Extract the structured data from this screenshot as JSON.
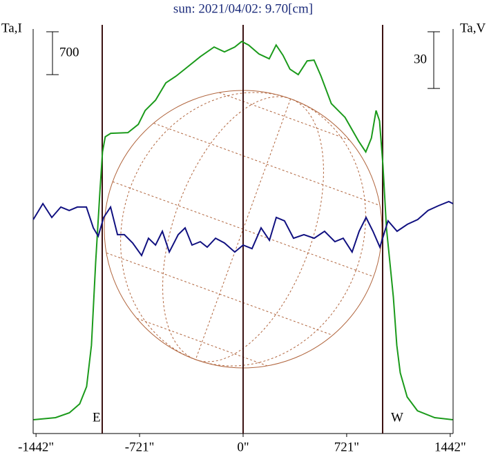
{
  "chart_data": {
    "type": "line",
    "title": "sun: 2021/04/02: 9.70[cm]",
    "ylabel": "Ta,I",
    "y2label": "Ta,V",
    "xlim": [
      -1462,
      1462
    ],
    "xticks": [
      {
        "value": -1442,
        "label": "-1442\""
      },
      {
        "value": -721,
        "label": "-721\""
      },
      {
        "value": 0,
        "label": "0\""
      },
      {
        "value": 721,
        "label": "721\""
      },
      {
        "value": 1442,
        "label": "1442\""
      }
    ],
    "ylim": [
      0,
      6600
    ],
    "y2lim": [
      -107,
      107
    ],
    "scale_bars": [
      {
        "value": 700,
        "axis": "y"
      },
      {
        "value": 30,
        "axis": "y2"
      }
    ],
    "limb_labels": [
      "E",
      "W"
    ],
    "series": [
      {
        "name": "Ta,I",
        "color": "#1a9a1a",
        "axis": "y",
        "x": [
          -1459,
          -1306,
          -1210,
          -1138,
          -1090,
          -1056,
          -1027,
          -998,
          -979,
          -960,
          -922,
          -802,
          -730,
          -682,
          -610,
          -538,
          -466,
          -394,
          -298,
          -202,
          -130,
          -58,
          -10,
          38,
          110,
          182,
          230,
          278,
          326,
          384,
          446,
          494,
          542,
          614,
          710,
          806,
          854,
          893,
          926,
          950,
          974,
          998,
          1022,
          1046,
          1070,
          1094,
          1142,
          1214,
          1334,
          1459
        ],
        "values": [
          225,
          259,
          338,
          484,
          766,
          1441,
          2792,
          3918,
          4594,
          4842,
          4898,
          4909,
          5044,
          5270,
          5439,
          5720,
          5833,
          5968,
          6148,
          6306,
          6227,
          6306,
          6396,
          6339,
          6193,
          6114,
          6339,
          6170,
          5945,
          5855,
          6080,
          6092,
          5833,
          5382,
          5157,
          4763,
          4594,
          4819,
          5270,
          5101,
          4369,
          3355,
          2792,
          2229,
          1441,
          991,
          597,
          372,
          259,
          225
        ]
      },
      {
        "name": "Ta,V",
        "color": "#101080",
        "axis": "y2",
        "x": [
          -1461,
          -1394,
          -1332,
          -1269,
          -1211,
          -1154,
          -1091,
          -1043,
          -1009,
          -971,
          -923,
          -875,
          -827,
          -769,
          -707,
          -659,
          -610,
          -562,
          -514,
          -452,
          -404,
          -356,
          -298,
          -250,
          -192,
          -130,
          -58,
          0,
          62,
          125,
          183,
          231,
          288,
          351,
          423,
          495,
          567,
          639,
          697,
          759,
          808,
          856,
          904,
          952,
          1009,
          1072,
          1144,
          1216,
          1288,
          1360,
          1432,
          1461
        ],
        "values": [
          6.2,
          14.6,
          7.3,
          12.8,
          11.0,
          12.8,
          12.8,
          1.8,
          -2.6,
          7.3,
          12.8,
          -1.8,
          -1.8,
          -6.2,
          -12.8,
          -3.7,
          -7.3,
          0,
          -11.0,
          -1.8,
          1.8,
          -7.3,
          -5.5,
          -8.4,
          -3.7,
          -6.2,
          -11.0,
          -7.3,
          -9.2,
          1.8,
          -4.8,
          7.3,
          5.5,
          -3.7,
          -1.8,
          -3.7,
          0,
          -5.5,
          -3.7,
          -11.0,
          0,
          7.3,
          0,
          -8.4,
          5.5,
          0,
          3.7,
          6.2,
          11.0,
          13.5,
          15.7,
          14.6
        ]
      }
    ]
  }
}
